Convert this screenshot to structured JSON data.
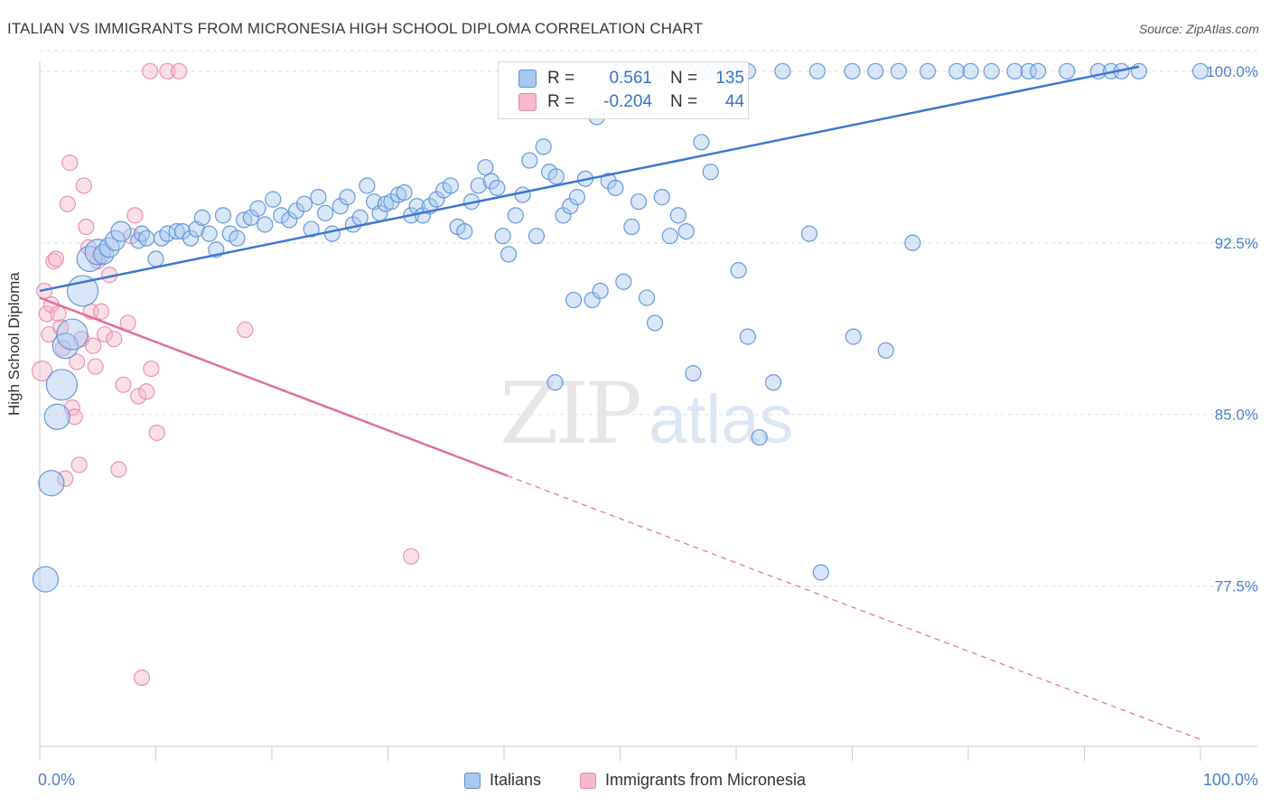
{
  "title": "ITALIAN VS IMMIGRANTS FROM MICRONESIA HIGH SCHOOL DIPLOMA CORRELATION CHART",
  "source": "Source: ZipAtlas.com",
  "watermark": {
    "zip": "ZIP",
    "atlas": "atlas"
  },
  "stats": {
    "italians": {
      "r_label": "R =",
      "r_value": "0.561",
      "n_label": "N =",
      "n_value": "135"
    },
    "micronesia": {
      "r_label": "R =",
      "r_value": "-0.204",
      "n_label": "N =",
      "n_value": "44"
    }
  },
  "legend": {
    "italians": "Italians",
    "micronesia": "Immigrants from Micronesia"
  },
  "colors": {
    "italians_fill": "#a9c8f0",
    "italians_stroke": "#5a8fd8",
    "italians_line": "#3c78d0",
    "micronesia_fill": "#f6b8cb",
    "micronesia_stroke": "#e88aa8",
    "micronesia_line": "#e0709a",
    "axis_label": "#4a7fd0",
    "grid": "#dddddd"
  },
  "chart_data": {
    "type": "scatter",
    "title": "ITALIAN VS IMMIGRANTS FROM MICRONESIA HIGH SCHOOL DIPLOMA CORRELATION CHART",
    "xlabel": "",
    "ylabel": "High School Diploma",
    "xlim": [
      0,
      100
    ],
    "ylim": [
      70.5,
      100.9
    ],
    "x_tick_labels": [
      "0.0%",
      "100.0%"
    ],
    "y_ticks": [
      77.5,
      85.0,
      92.5,
      100.0
    ],
    "y_tick_labels": [
      "77.5%",
      "85.0%",
      "92.5%",
      "100.0%"
    ],
    "grid": true,
    "legend_position": "bottom",
    "series": [
      {
        "name": "Italians",
        "r": 0.561,
        "n": 135,
        "trend": {
          "x": [
            0,
            94.7
          ],
          "y": [
            90.4,
            100.2
          ],
          "dashed_from": null
        },
        "points": [
          [
            0.5,
            77.8,
            4
          ],
          [
            1.0,
            82.0,
            4
          ],
          [
            1.5,
            84.9,
            4
          ],
          [
            1.9,
            86.3,
            5
          ],
          [
            2.2,
            88.0,
            4
          ],
          [
            2.8,
            88.5,
            5
          ],
          [
            3.7,
            90.4,
            5
          ],
          [
            4.3,
            91.8,
            4
          ],
          [
            5.0,
            92.1,
            4
          ],
          [
            5.5,
            92.0,
            3
          ],
          [
            6.0,
            92.3,
            3
          ],
          [
            6.5,
            92.6,
            3
          ],
          [
            7.0,
            93.0,
            3
          ],
          [
            8.5,
            92.6,
            2
          ],
          [
            8.8,
            92.9,
            2
          ],
          [
            9.2,
            92.7,
            2
          ],
          [
            10.0,
            91.8,
            2
          ],
          [
            10.5,
            92.7,
            2
          ],
          [
            11.0,
            92.9,
            2
          ],
          [
            11.8,
            93.0,
            2
          ],
          [
            12.3,
            93.0,
            2
          ],
          [
            13.0,
            92.7,
            2
          ],
          [
            13.5,
            93.1,
            2
          ],
          [
            14.0,
            93.6,
            2
          ],
          [
            14.6,
            92.9,
            2
          ],
          [
            15.2,
            92.2,
            2
          ],
          [
            15.8,
            93.7,
            2
          ],
          [
            16.4,
            92.9,
            2
          ],
          [
            17.0,
            92.7,
            2
          ],
          [
            17.6,
            93.5,
            2
          ],
          [
            18.2,
            93.6,
            2
          ],
          [
            18.8,
            94.0,
            2
          ],
          [
            19.4,
            93.3,
            2
          ],
          [
            20.1,
            94.4,
            2
          ],
          [
            20.8,
            93.7,
            2
          ],
          [
            21.5,
            93.5,
            2
          ],
          [
            22.1,
            93.9,
            2
          ],
          [
            22.8,
            94.2,
            2
          ],
          [
            23.4,
            93.1,
            2
          ],
          [
            24.0,
            94.5,
            2
          ],
          [
            24.6,
            93.8,
            2
          ],
          [
            25.2,
            92.9,
            2
          ],
          [
            25.9,
            94.1,
            2
          ],
          [
            26.5,
            94.5,
            2
          ],
          [
            27.0,
            93.3,
            2
          ],
          [
            27.6,
            93.6,
            2
          ],
          [
            28.2,
            95.0,
            2
          ],
          [
            28.8,
            94.3,
            2
          ],
          [
            29.3,
            93.8,
            2
          ],
          [
            29.8,
            94.2,
            2
          ],
          [
            30.3,
            94.3,
            2
          ],
          [
            30.9,
            94.6,
            2
          ],
          [
            31.4,
            94.7,
            2
          ],
          [
            32.0,
            93.7,
            2
          ],
          [
            32.5,
            94.1,
            2
          ],
          [
            33.0,
            93.7,
            2
          ],
          [
            33.6,
            94.1,
            2
          ],
          [
            34.2,
            94.4,
            2
          ],
          [
            34.8,
            94.8,
            2
          ],
          [
            35.4,
            95.0,
            2
          ],
          [
            36.0,
            93.2,
            2
          ],
          [
            36.6,
            93.0,
            2
          ],
          [
            37.2,
            94.3,
            2
          ],
          [
            37.8,
            95.0,
            2
          ],
          [
            38.4,
            95.8,
            2
          ],
          [
            38.9,
            95.2,
            2
          ],
          [
            39.4,
            94.9,
            2
          ],
          [
            39.9,
            92.8,
            2
          ],
          [
            40.4,
            92.0,
            2
          ],
          [
            41.0,
            93.7,
            2
          ],
          [
            41.6,
            94.6,
            2
          ],
          [
            42.2,
            96.1,
            2
          ],
          [
            42.8,
            92.8,
            2
          ],
          [
            43.4,
            96.7,
            2
          ],
          [
            43.9,
            95.6,
            2
          ],
          [
            44.5,
            95.4,
            2
          ],
          [
            45.1,
            93.7,
            2
          ],
          [
            45.7,
            94.1,
            2
          ],
          [
            46.3,
            94.5,
            2
          ],
          [
            47.0,
            95.3,
            2
          ],
          [
            47.6,
            90.0,
            2
          ],
          [
            48.3,
            90.4,
            2
          ],
          [
            49.0,
            95.2,
            2
          ],
          [
            49.6,
            94.9,
            2
          ],
          [
            50.3,
            90.8,
            2
          ],
          [
            51.0,
            93.2,
            2
          ],
          [
            51.6,
            94.3,
            2
          ],
          [
            52.3,
            90.1,
            2
          ],
          [
            53.0,
            89.0,
            2
          ],
          [
            53.6,
            94.5,
            2
          ],
          [
            54.3,
            92.8,
            2
          ],
          [
            55.0,
            93.7,
            2
          ],
          [
            55.7,
            93.0,
            2
          ],
          [
            56.3,
            86.8,
            2
          ],
          [
            57.0,
            96.9,
            2
          ],
          [
            57.8,
            95.6,
            2
          ],
          [
            59.0,
            99.8,
            2
          ],
          [
            60.2,
            91.3,
            2
          ],
          [
            61.0,
            88.4,
            2
          ],
          [
            62.0,
            84.0,
            2
          ],
          [
            63.2,
            86.4,
            2
          ],
          [
            66.3,
            92.9,
            2
          ],
          [
            67.3,
            78.1,
            2
          ],
          [
            70.1,
            88.4,
            2
          ],
          [
            72.9,
            87.8,
            2
          ],
          [
            75.2,
            92.5,
            2
          ],
          [
            53.5,
            100.0,
            2
          ],
          [
            55.8,
            100.0,
            2
          ],
          [
            57.2,
            100.0,
            2
          ],
          [
            58.0,
            100.0,
            2
          ],
          [
            59.5,
            100.0,
            2
          ],
          [
            61.0,
            100.0,
            2
          ],
          [
            64.0,
            100.0,
            2
          ],
          [
            67.0,
            100.0,
            2
          ],
          [
            70.0,
            100.0,
            2
          ],
          [
            72.0,
            100.0,
            2
          ],
          [
            74.0,
            100.0,
            2
          ],
          [
            76.5,
            100.0,
            2
          ],
          [
            79.0,
            100.0,
            2
          ],
          [
            80.2,
            100.0,
            2
          ],
          [
            82.0,
            100.0,
            2
          ],
          [
            84.0,
            100.0,
            2
          ],
          [
            85.2,
            100.0,
            2
          ],
          [
            86.0,
            100.0,
            2
          ],
          [
            88.5,
            100.0,
            2
          ],
          [
            91.2,
            100.0,
            2
          ],
          [
            92.3,
            100.0,
            2
          ],
          [
            93.2,
            100.0,
            2
          ],
          [
            94.7,
            100.0,
            2
          ],
          [
            100.0,
            100.0,
            2
          ],
          [
            44.4,
            86.4,
            2
          ],
          [
            46.0,
            90.0,
            2
          ],
          [
            48.0,
            98.0,
            2
          ],
          [
            50.0,
            100.0,
            2
          ],
          [
            52.0,
            99.6,
            2
          ]
        ]
      },
      {
        "name": "Immigrants from Micronesia",
        "r": -0.204,
        "n": 44,
        "trend": {
          "x": [
            0,
            100
          ],
          "y": [
            90.1,
            70.8
          ],
          "dashed_from": 40.3
        },
        "points": [
          [
            0.2,
            86.9,
            3
          ],
          [
            0.4,
            90.4,
            2
          ],
          [
            0.6,
            89.4,
            2
          ],
          [
            0.8,
            88.5,
            2
          ],
          [
            1.0,
            89.8,
            2
          ],
          [
            1.2,
            91.7,
            2
          ],
          [
            1.4,
            91.8,
            2
          ],
          [
            1.6,
            89.4,
            2
          ],
          [
            1.8,
            88.8,
            2
          ],
          [
            2.0,
            87.9,
            2
          ],
          [
            2.2,
            82.2,
            2
          ],
          [
            2.4,
            94.2,
            2
          ],
          [
            2.6,
            96.0,
            2
          ],
          [
            2.8,
            85.3,
            2
          ],
          [
            3.0,
            84.9,
            2
          ],
          [
            3.2,
            87.3,
            2
          ],
          [
            3.4,
            82.8,
            2
          ],
          [
            3.6,
            88.3,
            2
          ],
          [
            3.8,
            95.0,
            2
          ],
          [
            4.0,
            93.2,
            2
          ],
          [
            4.2,
            92.3,
            2
          ],
          [
            4.4,
            89.5,
            2
          ],
          [
            4.6,
            88.0,
            2
          ],
          [
            4.8,
            87.1,
            2
          ],
          [
            5.0,
            91.7,
            2
          ],
          [
            5.3,
            89.5,
            2
          ],
          [
            5.6,
            88.5,
            2
          ],
          [
            6.0,
            91.1,
            2
          ],
          [
            6.4,
            88.3,
            2
          ],
          [
            6.8,
            82.6,
            2
          ],
          [
            7.2,
            86.3,
            2
          ],
          [
            7.6,
            89.0,
            2
          ],
          [
            7.9,
            92.8,
            2
          ],
          [
            8.2,
            93.7,
            2
          ],
          [
            8.5,
            85.8,
            2
          ],
          [
            8.8,
            73.5,
            2
          ],
          [
            9.2,
            86.0,
            2
          ],
          [
            9.6,
            87.0,
            2
          ],
          [
            10.1,
            84.2,
            2
          ],
          [
            9.5,
            100.0,
            2
          ],
          [
            11.0,
            100.0,
            2
          ],
          [
            12.0,
            100.0,
            2
          ],
          [
            17.7,
            88.7,
            2
          ],
          [
            32.0,
            78.8,
            2
          ]
        ]
      }
    ]
  }
}
